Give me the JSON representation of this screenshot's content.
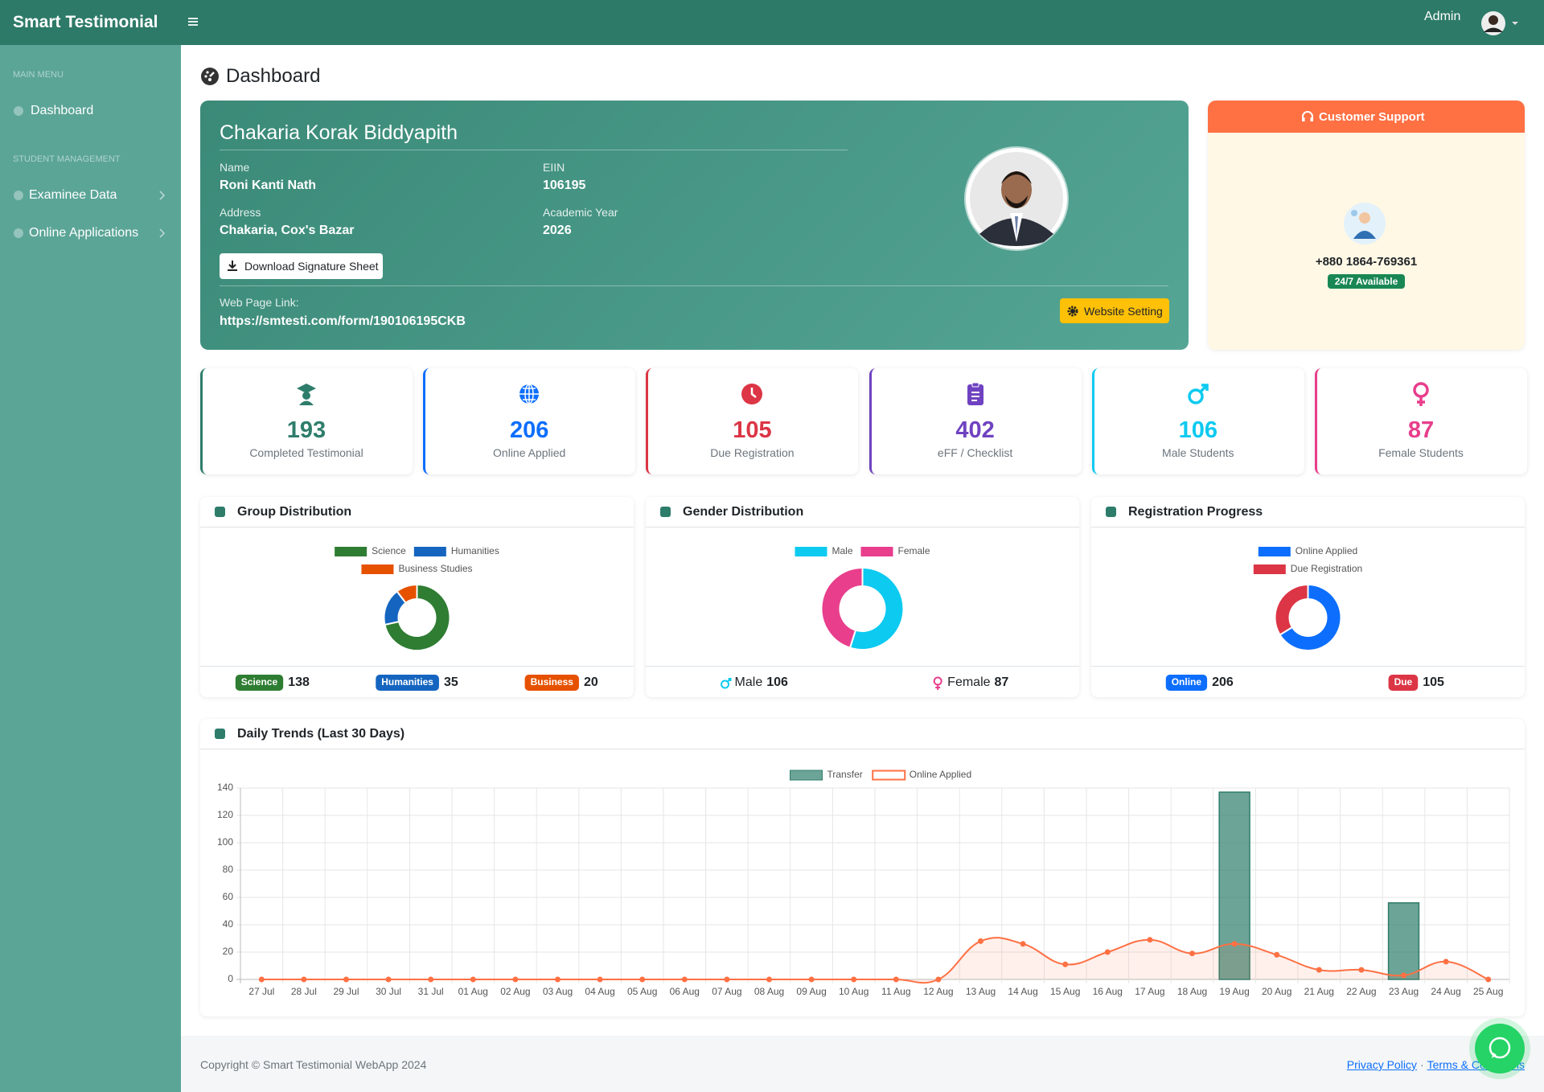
{
  "topbar": {
    "brand": "Smart Testimonial",
    "user": "Admin"
  },
  "sidebar": {
    "sections": [
      {
        "heading": "MAIN MENU",
        "items": [
          "Dashboard"
        ]
      },
      {
        "heading": "STUDENT MANAGEMENT",
        "items": [
          "Examinee Data",
          "Online Applications"
        ]
      }
    ]
  },
  "page_title": "Dashboard",
  "profile": {
    "school": "Chakaria Korak Biddyapith",
    "fields": [
      {
        "label": "Name",
        "value": "Roni Kanti Nath"
      },
      {
        "label": "EIIN",
        "value": "106195"
      },
      {
        "label": "Address",
        "value": "Chakaria, Cox's Bazar"
      },
      {
        "label": "Academic Year",
        "value": "2026"
      }
    ],
    "download_button": "Download Signature Sheet",
    "web_link_label": "Web Page Link:",
    "web_link": "https://smtesti.com/form/190106195CKB",
    "settings_button": "Website Setting"
  },
  "support": {
    "title": "Customer Support",
    "phone": "+880 1864-769361",
    "availability": "24/7 Available"
  },
  "stats": [
    {
      "value": 193,
      "label": "Completed Testimonial",
      "color": "#2e7d6b"
    },
    {
      "value": 206,
      "label": "Online Applied",
      "color": "#0d6efd"
    },
    {
      "value": 105,
      "label": "Due Registration",
      "color": "#dc3545"
    },
    {
      "value": 402,
      "label": "eFF / Checklist",
      "color": "#6f42c1"
    },
    {
      "value": 106,
      "label": "Male Students",
      "color": "#0dcaf0"
    },
    {
      "value": 87,
      "label": "Female Students",
      "color": "#e83e8c"
    }
  ],
  "chart_data": [
    {
      "type": "donut",
      "title": "Group Distribution",
      "categories": [
        "Science",
        "Humanities",
        "Business Studies"
      ],
      "values": [
        138,
        35,
        20
      ],
      "colors": [
        "#2e7d32",
        "#1565c0",
        "#e65100"
      ],
      "badges": [
        "Science",
        "Humanities",
        "Business"
      ]
    },
    {
      "type": "donut",
      "title": "Gender Distribution",
      "categories": [
        "Male",
        "Female"
      ],
      "values": [
        106,
        87
      ],
      "colors": [
        "#0dcaf0",
        "#e83e8c"
      ]
    },
    {
      "type": "donut",
      "title": "Registration Progress",
      "categories": [
        "Online Applied",
        "Due Registration"
      ],
      "values": [
        206,
        105
      ],
      "colors": [
        "#0d6efd",
        "#dc3545"
      ],
      "badges": [
        "Online",
        "Due"
      ]
    },
    {
      "type": "combo",
      "title": "Daily Trends (Last 30 Days)",
      "categories": [
        "27 Jul",
        "28 Jul",
        "29 Jul",
        "30 Jul",
        "31 Jul",
        "01 Aug",
        "02 Aug",
        "03 Aug",
        "04 Aug",
        "05 Aug",
        "06 Aug",
        "07 Aug",
        "08 Aug",
        "09 Aug",
        "10 Aug",
        "11 Aug",
        "12 Aug",
        "13 Aug",
        "14 Aug",
        "15 Aug",
        "16 Aug",
        "17 Aug",
        "18 Aug",
        "19 Aug",
        "20 Aug",
        "21 Aug",
        "22 Aug",
        "23 Aug",
        "24 Aug",
        "25 Aug"
      ],
      "series": [
        {
          "name": "Transfer",
          "type": "bar",
          "color": "#2e7d6b",
          "values": [
            0,
            0,
            0,
            0,
            0,
            0,
            0,
            0,
            0,
            0,
            0,
            0,
            0,
            0,
            0,
            0,
            0,
            0,
            0,
            0,
            0,
            0,
            0,
            137,
            0,
            0,
            0,
            56,
            0,
            0
          ]
        },
        {
          "name": "Online Applied",
          "type": "line",
          "color": "#ff7043",
          "values": [
            0,
            0,
            0,
            0,
            0,
            0,
            0,
            0,
            0,
            0,
            0,
            0,
            0,
            0,
            0,
            0,
            0,
            28,
            26,
            11,
            20,
            29,
            19,
            26,
            18,
            7,
            7,
            3,
            13,
            0
          ]
        }
      ],
      "ylim": [
        0,
        140
      ],
      "yticks": [
        0,
        20,
        40,
        60,
        80,
        100,
        120,
        140
      ],
      "grid": true
    }
  ],
  "footer": {
    "copyright": "Copyright © Smart Testimonial WebApp 2024",
    "links": [
      "Privacy Policy",
      "Terms & Conditions"
    ],
    "separator": "·"
  }
}
